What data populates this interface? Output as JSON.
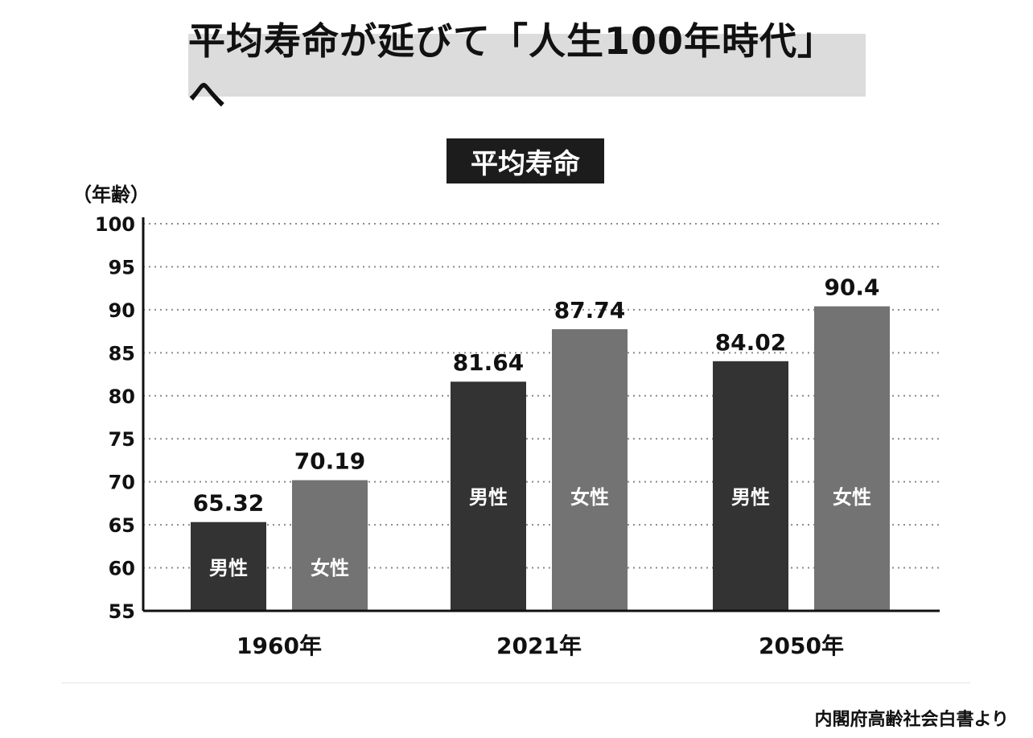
{
  "headline": "平均寿命が延びて「人生100年時代」へ",
  "source_note": "内閣府高齢社会白書より",
  "colors": {
    "male": "#333333",
    "female": "#737373",
    "grid": "#8a8a8a"
  },
  "chart_data": {
    "type": "bar",
    "title": "平均寿命",
    "ylabel": "（年齢）",
    "categories": [
      "1960年",
      "2021年",
      "2050年"
    ],
    "series": [
      {
        "name": "男性",
        "values": [
          65.32,
          81.64,
          84.02
        ]
      },
      {
        "name": "女性",
        "values": [
          70.19,
          87.74,
          90.4
        ]
      }
    ],
    "value_labels": [
      [
        "65.32",
        "81.64",
        "84.02"
      ],
      [
        "70.19",
        "87.74",
        "90.4"
      ]
    ],
    "ylim": [
      55,
      100
    ],
    "yticks": [
      100,
      95,
      90,
      85,
      80,
      75,
      70,
      65,
      60,
      55
    ],
    "grid": true,
    "legend": "none"
  }
}
